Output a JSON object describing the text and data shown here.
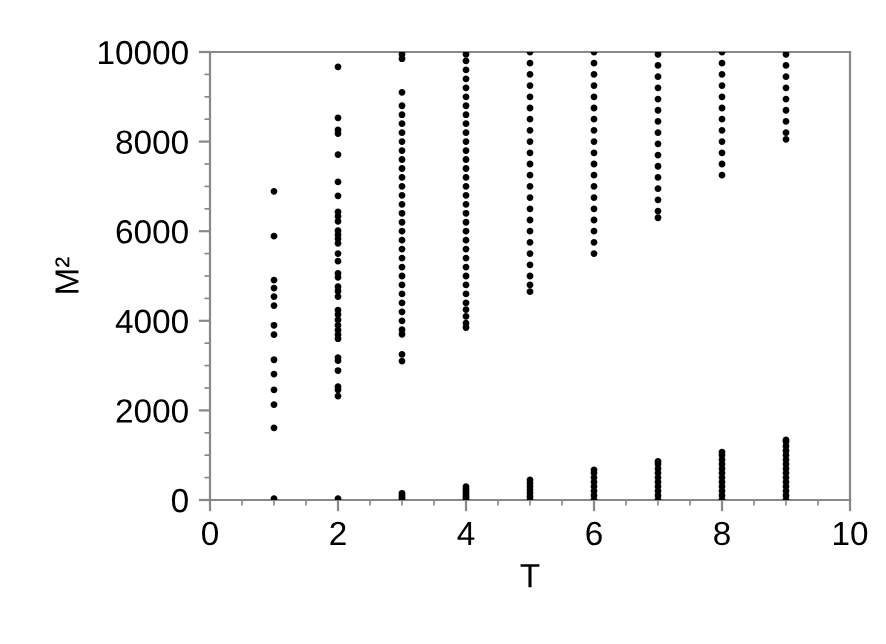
{
  "chart_data": {
    "type": "scatter",
    "xlabel": "T",
    "ylabel": "M²",
    "xlim": [
      0,
      10
    ],
    "xticks": [
      0,
      2,
      4,
      6,
      8,
      10
    ],
    "ylim": [
      0,
      10000
    ],
    "yticks": [
      0,
      2000,
      4000,
      6000,
      8000,
      10000
    ],
    "grid": false,
    "marker": "circle",
    "legend": false,
    "series": [
      {
        "color": "#000000",
        "x": [
          1,
          1,
          1,
          1,
          1,
          1,
          1,
          1,
          1,
          1,
          1,
          1,
          1,
          1,
          2,
          2,
          2,
          2,
          2,
          2,
          2,
          2,
          2,
          2,
          2,
          2,
          2,
          2,
          2,
          2,
          2,
          2,
          2,
          2,
          2,
          2,
          2,
          2,
          2,
          2,
          2,
          2,
          2,
          2,
          2,
          2,
          2,
          2,
          2,
          3,
          3,
          3,
          3,
          3,
          3,
          3,
          3,
          3,
          3,
          3,
          3,
          3,
          3,
          3,
          3,
          3,
          3,
          3,
          3,
          3,
          3,
          3,
          3,
          3,
          3,
          3,
          3,
          3,
          3,
          3,
          3,
          3,
          3,
          3,
          3,
          4,
          4,
          4,
          4,
          4,
          4,
          4,
          4,
          4,
          4,
          4,
          4,
          4,
          4,
          4,
          4,
          4,
          4,
          4,
          4,
          4,
          4,
          4,
          4,
          4,
          4,
          4,
          4,
          4,
          4,
          4,
          4,
          4,
          4,
          4,
          4,
          4,
          4,
          4,
          4,
          5,
          5,
          5,
          5,
          5,
          5,
          5,
          5,
          5,
          5,
          5,
          5,
          5,
          5,
          5,
          5,
          5,
          5,
          5,
          5,
          5,
          5,
          5,
          5,
          5,
          5,
          5,
          5,
          5,
          5,
          6,
          6,
          6,
          6,
          6,
          6,
          6,
          6,
          6,
          6,
          6,
          6,
          6,
          6,
          6,
          6,
          6,
          6,
          6,
          6,
          6,
          6,
          6,
          6,
          6,
          6,
          6,
          7,
          7,
          7,
          7,
          7,
          7,
          7,
          7,
          7,
          7,
          7,
          7,
          7,
          7,
          7,
          7,
          7,
          7,
          7,
          7,
          7,
          7,
          7,
          7,
          7,
          7,
          8,
          8,
          8,
          8,
          8,
          8,
          8,
          8,
          8,
          8,
          8,
          8,
          8,
          8,
          8,
          8,
          8,
          8,
          8,
          8,
          8,
          8,
          8,
          8,
          9,
          9,
          9,
          9,
          9,
          9,
          9,
          9,
          9,
          9,
          9,
          9,
          9,
          9,
          9,
          9,
          9,
          9,
          9,
          9,
          9,
          9,
          9,
          9
        ],
        "values": [
          6890,
          5890,
          4910,
          4730,
          4540,
          4340,
          3900,
          3690,
          3130,
          2810,
          2460,
          2130,
          1610,
          30,
          9670,
          8530,
          8260,
          8180,
          7710,
          7100,
          6790,
          6430,
          6330,
          6220,
          6010,
          5920,
          5830,
          5730,
          5500,
          5330,
          5060,
          4970,
          4760,
          4660,
          4540,
          4240,
          4140,
          4020,
          3900,
          3790,
          3690,
          3600,
          3180,
          3110,
          2890,
          2530,
          2460,
          2320,
          30,
          9950,
          9850,
          9100,
          8800,
          8600,
          8400,
          8200,
          8000,
          7800,
          7600,
          7400,
          7200,
          7000,
          6800,
          6600,
          6400,
          6200,
          6000,
          5800,
          5600,
          5400,
          5200,
          5000,
          4800,
          4600,
          4400,
          4200,
          4000,
          3800,
          3700,
          3250,
          3100,
          0,
          50,
          100,
          150,
          9950,
          9800,
          9600,
          9400,
          9200,
          9000,
          8800,
          8600,
          8400,
          8200,
          8000,
          7800,
          7600,
          7400,
          7200,
          7000,
          6800,
          6600,
          6400,
          6200,
          6000,
          5800,
          5600,
          5400,
          5200,
          5000,
          4800,
          4600,
          4400,
          4250,
          4100,
          3950,
          3850,
          0,
          50,
          100,
          150,
          200,
          250,
          300,
          10000,
          9750,
          9500,
          9250,
          9000,
          8750,
          8500,
          8250,
          8000,
          7750,
          7500,
          7250,
          7000,
          6750,
          6500,
          6250,
          6000,
          5750,
          5500,
          5250,
          5000,
          4800,
          4650,
          0,
          75,
          150,
          225,
          300,
          375,
          450,
          10000,
          9750,
          9500,
          9250,
          9000,
          8750,
          8500,
          8250,
          8000,
          7750,
          7500,
          7250,
          7000,
          6750,
          6500,
          6250,
          6000,
          5750,
          5500,
          0,
          100,
          200,
          300,
          400,
          500,
          600,
          670,
          9950,
          9700,
          9450,
          9200,
          8950,
          8700,
          8450,
          8200,
          7950,
          7700,
          7450,
          7200,
          6950,
          6700,
          6450,
          6300,
          0,
          100,
          200,
          300,
          400,
          500,
          600,
          700,
          800,
          860,
          10000,
          9750,
          9500,
          9250,
          9000,
          8750,
          8500,
          8250,
          8000,
          7750,
          7500,
          7250,
          0,
          100,
          200,
          300,
          400,
          500,
          600,
          700,
          800,
          900,
          1000,
          1070,
          9950,
          9700,
          9450,
          9200,
          8950,
          8700,
          8450,
          8200,
          8050,
          0,
          100,
          200,
          300,
          400,
          500,
          600,
          700,
          800,
          900,
          1000,
          1100,
          1200,
          1300,
          1340
        ]
      }
    ]
  }
}
